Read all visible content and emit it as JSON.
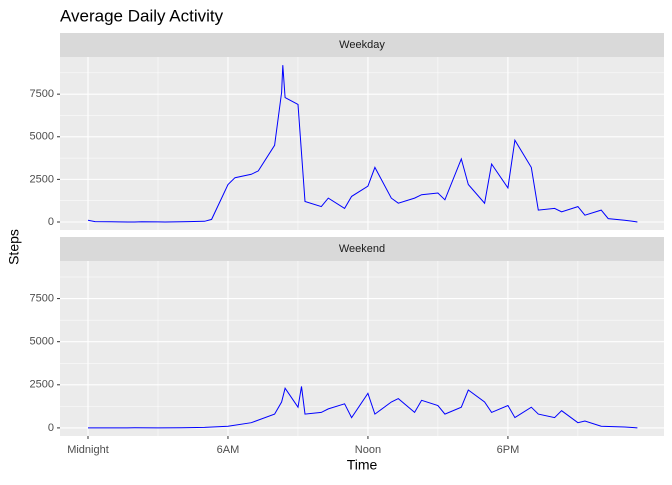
{
  "chart_data": {
    "type": "line",
    "title": "Average Daily Activity",
    "xlabel": "Time",
    "ylabel": "Steps",
    "color": "#0000ff",
    "xlim": [
      -120,
      2469
    ],
    "xticks": [
      {
        "value": 0,
        "label": "Midnight"
      },
      {
        "value": 600,
        "label": "6AM"
      },
      {
        "value": 1200,
        "label": "Noon"
      },
      {
        "value": 1800,
        "label": "6PM"
      }
    ],
    "xminor": [
      300,
      900,
      1500,
      2100
    ],
    "ylim": [
      -470,
      9680
    ],
    "yticks": [
      0,
      2500,
      5000,
      7500
    ],
    "yminor": [
      1250,
      3750,
      6250,
      8750
    ],
    "grid": true,
    "panels": [
      {
        "strip": "Weekday",
        "x": [
          0,
          30,
          100,
          130,
          200,
          230,
          300,
          330,
          400,
          430,
          500,
          530,
          600,
          630,
          700,
          730,
          800,
          830,
          835,
          845,
          900,
          930,
          1000,
          1030,
          1100,
          1130,
          1200,
          1230,
          1300,
          1330,
          1400,
          1430,
          1500,
          1530,
          1600,
          1630,
          1700,
          1730,
          1800,
          1830,
          1900,
          1930,
          2000,
          2030,
          2100,
          2130,
          2200,
          2230,
          2300,
          2330,
          2355
        ],
        "values": [
          100,
          20,
          10,
          5,
          0,
          10,
          5,
          0,
          10,
          20,
          40,
          150,
          2200,
          2600,
          2800,
          3000,
          4500,
          7600,
          9200,
          7300,
          6900,
          1200,
          900,
          1400,
          800,
          1500,
          2100,
          3200,
          1400,
          1100,
          1400,
          1600,
          1700,
          1300,
          3700,
          2200,
          1100,
          3400,
          2000,
          4800,
          3200,
          700,
          800,
          600,
          900,
          400,
          700,
          200,
          100,
          50,
          0
        ]
      },
      {
        "strip": "Weekend",
        "x": [
          0,
          100,
          200,
          300,
          400,
          500,
          600,
          700,
          800,
          830,
          845,
          900,
          915,
          930,
          1000,
          1030,
          1100,
          1130,
          1200,
          1230,
          1300,
          1330,
          1400,
          1430,
          1500,
          1530,
          1600,
          1630,
          1700,
          1730,
          1800,
          1830,
          1900,
          1930,
          2000,
          2030,
          2100,
          2130,
          2200,
          2300,
          2355
        ],
        "values": [
          0,
          0,
          5,
          0,
          10,
          30,
          100,
          300,
          800,
          1500,
          2300,
          1200,
          2400,
          800,
          900,
          1100,
          1400,
          600,
          2000,
          800,
          1500,
          1700,
          900,
          1600,
          1300,
          800,
          1200,
          2200,
          1500,
          900,
          1300,
          600,
          1200,
          800,
          600,
          1000,
          300,
          400,
          100,
          50,
          0
        ]
      }
    ]
  }
}
